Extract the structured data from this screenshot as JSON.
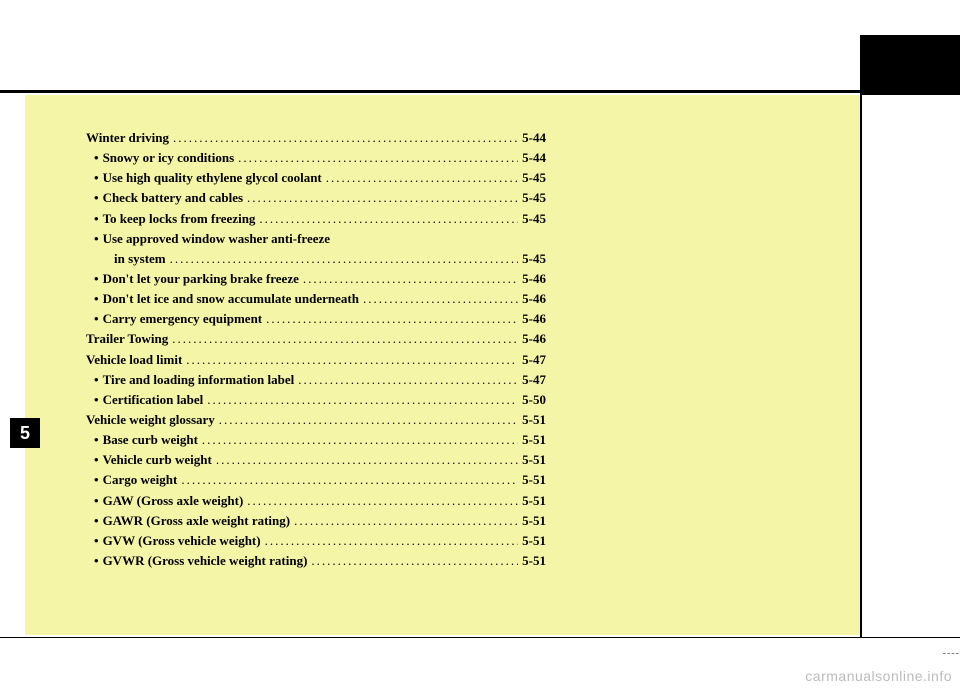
{
  "chapter_number": "5",
  "watermark": "carmanualsonline.info",
  "toc": [
    {
      "type": "section",
      "title": "Winter driving",
      "page": "5-44"
    },
    {
      "type": "sub",
      "title": "Snowy or icy conditions",
      "page": "5-44"
    },
    {
      "type": "sub",
      "title": "Use high quality ethylene glycol coolant",
      "page": "5-45"
    },
    {
      "type": "sub",
      "title": "Check battery and cables",
      "page": "5-45"
    },
    {
      "type": "sub",
      "title": "To keep locks from freezing",
      "page": "5-45"
    },
    {
      "type": "sub-nopage",
      "title": "Use approved window washer anti-freeze"
    },
    {
      "type": "sub-cont",
      "title": "in system",
      "page": "5-45"
    },
    {
      "type": "sub",
      "title": "Don't let your parking brake freeze",
      "page": "5-46"
    },
    {
      "type": "sub",
      "title": "Don't let ice and snow accumulate underneath",
      "page": "5-46"
    },
    {
      "type": "sub",
      "title": "Carry emergency equipment",
      "page": "5-46"
    },
    {
      "type": "section",
      "title": "Trailer Towing",
      "page": "5-46"
    },
    {
      "type": "section",
      "title": "Vehicle load limit",
      "page": "5-47"
    },
    {
      "type": "sub",
      "title": "Tire and loading information label",
      "page": "5-47"
    },
    {
      "type": "sub",
      "title": "Certification label",
      "page": "5-50"
    },
    {
      "type": "section",
      "title": "Vehicle weight glossary",
      "page": "5-51"
    },
    {
      "type": "sub",
      "title": "Base curb weight",
      "page": "5-51"
    },
    {
      "type": "sub",
      "title": "Vehicle curb weight",
      "page": "5-51"
    },
    {
      "type": "sub",
      "title": "Cargo weight",
      "page": "5-51"
    },
    {
      "type": "sub",
      "title": "GAW (Gross axle weight)",
      "page": "5-51"
    },
    {
      "type": "sub",
      "title": "GAWR (Gross axle weight rating)",
      "page": "5-51"
    },
    {
      "type": "sub",
      "title": "GVW (Gross vehicle weight)",
      "page": "5-51"
    },
    {
      "type": "sub",
      "title": "GVWR (Gross vehicle weight rating)",
      "page": "5-51"
    }
  ]
}
